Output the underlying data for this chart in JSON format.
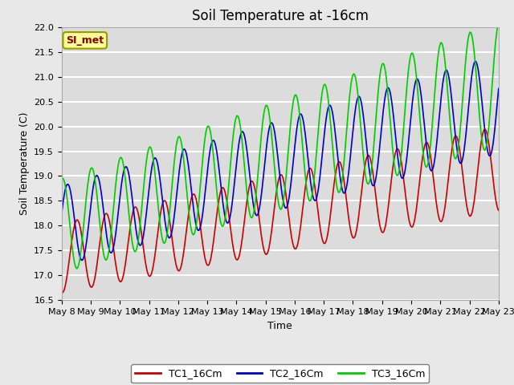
{
  "title": "Soil Temperature at -16cm",
  "xlabel": "Time",
  "ylabel": "Soil Temperature (C)",
  "ylim": [
    16.5,
    22.0
  ],
  "start_day": 8,
  "end_day": 23,
  "x_tick_labels": [
    "May 8",
    "May 9",
    "May 10",
    "May 11",
    "May 12",
    "May 13",
    "May 14",
    "May 15",
    "May 16",
    "May 17",
    "May 18",
    "May 19",
    "May 20",
    "May 21",
    "May 22",
    "May 23"
  ],
  "background_color": "#e8e8e8",
  "plot_bg_color": "#dcdcdc",
  "grid_color": "#ffffff",
  "legend_label": "SI_met",
  "series": {
    "TC1_16Cm": {
      "color": "#cc0000"
    },
    "TC2_16Cm": {
      "color": "#0000cc"
    },
    "TC3_16Cm": {
      "color": "#00cc00"
    }
  },
  "title_fontsize": 12,
  "axis_label_fontsize": 9,
  "tick_fontsize": 8,
  "y_ticks": [
    16.5,
    17.0,
    17.5,
    18.0,
    18.5,
    19.0,
    19.5,
    20.0,
    20.5,
    21.0,
    21.5,
    22.0
  ]
}
